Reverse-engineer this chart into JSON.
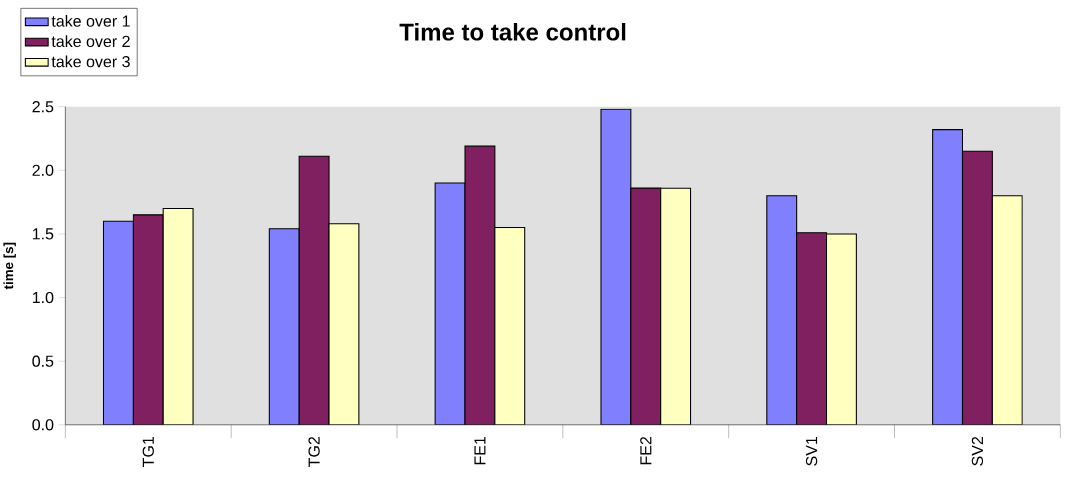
{
  "chart_data": {
    "type": "bar",
    "title": "Time to take control",
    "ylabel": "time [s]",
    "categories": [
      "TG1",
      "TG2",
      "FE1",
      "FE2",
      "SV1",
      "SV2"
    ],
    "series": [
      {
        "name": "take over 1",
        "color": "#8080ff",
        "values": [
          1.6,
          1.54,
          1.9,
          2.48,
          1.8,
          2.32
        ]
      },
      {
        "name": "take over 2",
        "color": "#802060",
        "values": [
          1.65,
          2.11,
          2.19,
          1.86,
          1.51,
          2.15
        ]
      },
      {
        "name": "take over 3",
        "color": "#ffffc0",
        "values": [
          1.7,
          1.58,
          1.55,
          1.86,
          1.5,
          1.8
        ]
      }
    ],
    "ylim": [
      0,
      2.5
    ],
    "yticks": [
      {
        "value": 0,
        "label": "0.0"
      },
      {
        "value": 0.5,
        "label": "0.5"
      },
      {
        "value": 1,
        "label": "1.0"
      },
      {
        "value": 1.5,
        "label": "1.5"
      },
      {
        "value": 2,
        "label": "2.0"
      },
      {
        "value": 2.5,
        "label": "2.5"
      }
    ],
    "legend": "top left",
    "grid": false
  }
}
